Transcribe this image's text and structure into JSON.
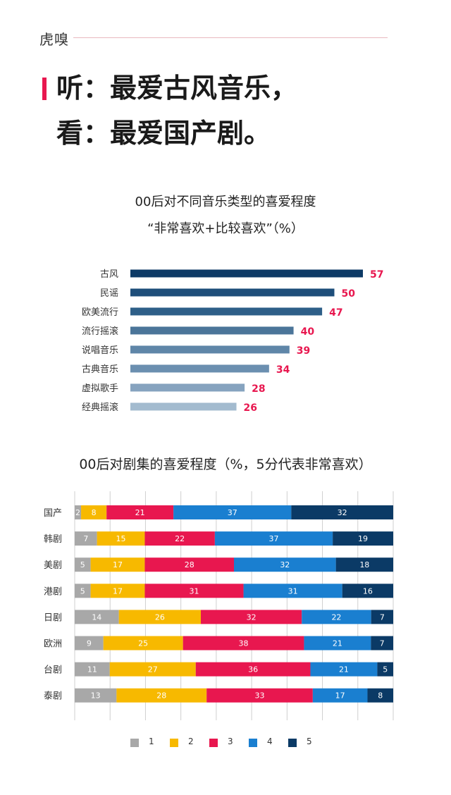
{
  "brand": {
    "logo_text": "虎嗅"
  },
  "headline": {
    "line1": "听：最爱古风音乐，",
    "line2": "看：最爱国产剧。"
  },
  "colors": {
    "accent": "#e8174f",
    "value_label": "#e8174f",
    "music_bar_gradient": [
      "#0d3a66",
      "#1e4e7a",
      "#2e5f88",
      "#4b7599",
      "#5f86a8",
      "#6b8fb0",
      "#86a3bf",
      "#a3bbcf"
    ],
    "score_palette": [
      "#a8a8a8",
      "#f7b900",
      "#e8174f",
      "#1a7fd0",
      "#0b3a66"
    ]
  },
  "chart_data": [
    {
      "type": "bar",
      "orientation": "horizontal",
      "title": "00后对不同音乐类型的喜爱程度",
      "subtitle": "“非常喜欢+比较喜欢”（%）",
      "categories": [
        "古风",
        "民谣",
        "欧美流行",
        "流行摇滚",
        "说唱音乐",
        "古典音乐",
        "虚拟歌手",
        "经典摇滚"
      ],
      "values": [
        57,
        50,
        47,
        40,
        39,
        34,
        28,
        26
      ],
      "xlim": [
        0,
        60
      ],
      "data_labels": true
    },
    {
      "type": "bar",
      "orientation": "horizontal",
      "stacked": true,
      "percent_stacked": true,
      "title": "00后对剧集的喜爱程度（%，5分代表非常喜欢）",
      "categories": [
        "国产",
        "韩剧",
        "美剧",
        "港剧",
        "日剧",
        "欧洲",
        "台剧",
        "泰剧"
      ],
      "series": [
        {
          "name": "1",
          "values": [
            2,
            7,
            5,
            5,
            14,
            9,
            11,
            13
          ]
        },
        {
          "name": "2",
          "values": [
            8,
            15,
            17,
            17,
            26,
            25,
            27,
            28
          ]
        },
        {
          "name": "3",
          "values": [
            21,
            22,
            28,
            31,
            32,
            38,
            36,
            33
          ]
        },
        {
          "name": "4",
          "values": [
            37,
            37,
            32,
            31,
            22,
            21,
            21,
            17
          ]
        },
        {
          "name": "5",
          "values": [
            32,
            19,
            18,
            16,
            7,
            7,
            5,
            8
          ]
        }
      ],
      "grid": true,
      "legend": "bottom",
      "data_labels": true
    }
  ]
}
